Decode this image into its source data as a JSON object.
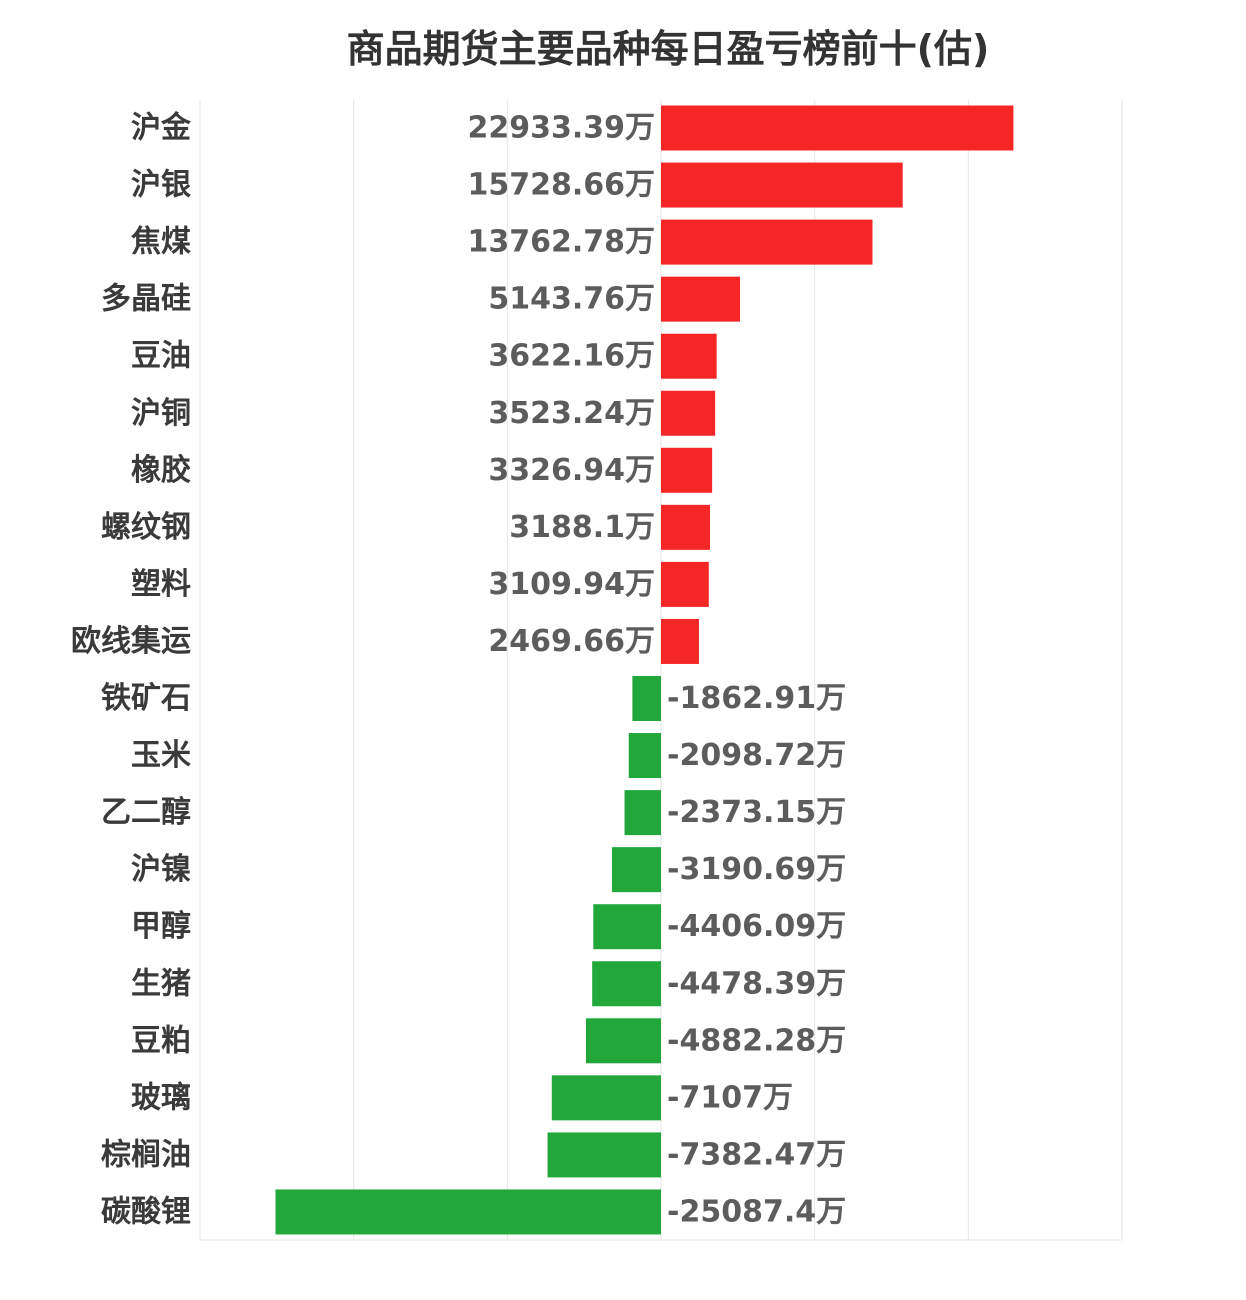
{
  "chart_data": {
    "type": "bar",
    "orientation": "horizontal",
    "title": "商品期货主要品种每日盈亏榜前十(估)",
    "unit": "万",
    "categories": [
      "沪金",
      "沪银",
      "焦煤",
      "多晶硅",
      "豆油",
      "沪铜",
      "橡胶",
      "螺纹钢",
      "塑料",
      "欧线集运",
      "铁矿石",
      "玉米",
      "乙二醇",
      "沪镍",
      "甲醇",
      "生猪",
      "豆粕",
      "玻璃",
      "棕榈油",
      "碳酸锂"
    ],
    "values": [
      22933.39,
      15728.66,
      13762.78,
      5143.76,
      3622.16,
      3523.24,
      3326.94,
      3188.1,
      3109.94,
      2469.66,
      -1862.91,
      -2098.72,
      -2373.15,
      -3190.69,
      -4406.09,
      -4478.39,
      -4882.28,
      -7107,
      -7382.47,
      -25087.4
    ],
    "value_labels": [
      "22933.39万",
      "15728.66万",
      "13762.78万",
      "5143.76万",
      "3622.16万",
      "3523.24万",
      "3326.94万",
      "3188.1万",
      "3109.94万",
      "2469.66万",
      "-1862.91万",
      "-2098.72万",
      "-2373.15万",
      "-3190.69万",
      "-4406.09万",
      "-4478.39万",
      "-4882.28万",
      "-7107万",
      "-7382.47万",
      "-25087.4万"
    ],
    "xlim": [
      -30000,
      30000
    ],
    "xlabel": "",
    "ylabel": "",
    "grid": true,
    "colors": {
      "positive": "#f52626",
      "negative": "#21a73a",
      "grid": "#e6e6e6"
    }
  }
}
